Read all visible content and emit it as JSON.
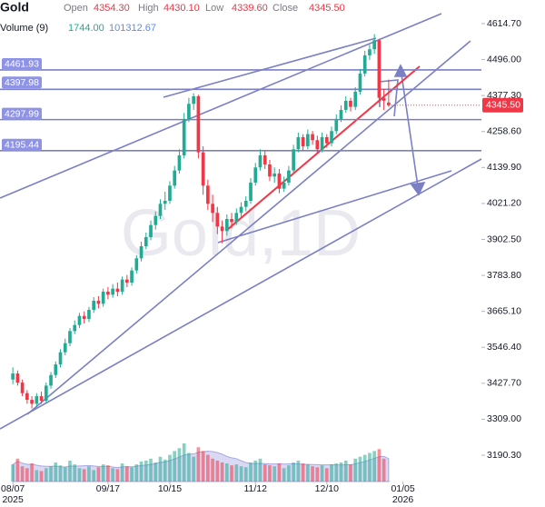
{
  "header": {
    "title": "Gold",
    "fields": [
      {
        "label": "Open",
        "value": "4354.30"
      },
      {
        "label": "High",
        "value": "4430.10"
      },
      {
        "label": "Low",
        "value": "4339.60"
      },
      {
        "label": "Close",
        "value": "4345.50"
      }
    ],
    "volume_label": "Volume (9)",
    "volume_values": [
      "1744.00",
      "101312.67"
    ]
  },
  "chart_data": {
    "type": "candlestick",
    "watermark": "Gold,1D",
    "open": [
      3440,
      3460,
      3430,
      3395,
      3373,
      3360,
      3385,
      3370,
      3420,
      3455,
      3490,
      3530,
      3560,
      3600,
      3620,
      3650,
      3640,
      3670,
      3700,
      3690,
      3730,
      3720,
      3740,
      3730,
      3770,
      3760,
      3800,
      3840,
      3880,
      3910,
      3950,
      3980,
      4020,
      4030,
      4080,
      4130,
      4180,
      4300,
      4350,
      4375,
      4190,
      4080,
      4020,
      3990,
      3945,
      3930,
      3970,
      3960,
      3990,
      4010,
      4030,
      4090,
      4140,
      4180,
      4150,
      4110,
      4120,
      4070,
      4090,
      4130,
      4200,
      4240,
      4210,
      4250,
      4230,
      4200,
      4240,
      4220,
      4260,
      4300,
      4330,
      4360,
      4340,
      4390,
      4450,
      4510,
      4530,
      4560,
      4370,
      4354.3
    ],
    "high": [
      3480,
      3470,
      3440,
      3405,
      3385,
      3395,
      3400,
      3430,
      3465,
      3500,
      3540,
      3575,
      3610,
      3635,
      3660,
      3665,
      3680,
      3712,
      3715,
      3740,
      3745,
      3755,
      3760,
      3780,
      3785,
      3810,
      3850,
      3895,
      3925,
      3965,
      3995,
      4035,
      4060,
      4095,
      4145,
      4200,
      4320,
      4370,
      4385,
      4380,
      4210,
      4100,
      4050,
      4010,
      3965,
      3985,
      3990,
      4005,
      4025,
      4045,
      4105,
      4155,
      4200,
      4195,
      4165,
      4140,
      4135,
      4110,
      4145,
      4215,
      4255,
      4250,
      4265,
      4260,
      4245,
      4255,
      4250,
      4275,
      4315,
      4345,
      4375,
      4370,
      4405,
      4465,
      4525,
      4545,
      4580,
      4565,
      4400,
      4430.1
    ],
    "low": [
      3425,
      3420,
      3385,
      3360,
      3345,
      3350,
      3360,
      3365,
      3410,
      3445,
      3480,
      3520,
      3550,
      3590,
      3610,
      3625,
      3630,
      3660,
      3675,
      3680,
      3705,
      3710,
      3715,
      3720,
      3745,
      3750,
      3790,
      3830,
      3870,
      3900,
      3935,
      3970,
      4000,
      4020,
      4070,
      4120,
      4170,
      4290,
      4330,
      4170,
      4050,
      4000,
      3960,
      3920,
      3890,
      3915,
      3940,
      3950,
      3975,
      3995,
      4020,
      4080,
      4130,
      4135,
      4095,
      4090,
      4055,
      4060,
      4080,
      4120,
      4190,
      4195,
      4200,
      4215,
      4185,
      4190,
      4205,
      4210,
      4250,
      4290,
      4320,
      4325,
      4330,
      4380,
      4440,
      4495,
      4515,
      4355,
      4330,
      4339.6
    ],
    "close": [
      3460,
      3430,
      3395,
      3373,
      3360,
      3385,
      3370,
      3420,
      3455,
      3490,
      3530,
      3560,
      3600,
      3620,
      3650,
      3640,
      3670,
      3700,
      3690,
      3730,
      3720,
      3740,
      3730,
      3770,
      3760,
      3800,
      3840,
      3880,
      3910,
      3950,
      3980,
      4020,
      4030,
      4080,
      4130,
      4180,
      4300,
      4350,
      4375,
      4190,
      4080,
      4020,
      3990,
      3945,
      3930,
      3970,
      3960,
      3990,
      4010,
      4030,
      4090,
      4140,
      4180,
      4150,
      4110,
      4120,
      4070,
      4090,
      4130,
      4200,
      4240,
      4210,
      4250,
      4230,
      4200,
      4240,
      4220,
      4260,
      4300,
      4330,
      4360,
      4340,
      4390,
      4450,
      4510,
      4530,
      4560,
      4370,
      4360,
      4345.5
    ],
    "volume": [
      90000,
      120000,
      80000,
      70000,
      95000,
      60000,
      55000,
      70000,
      80000,
      100000,
      85000,
      75000,
      110000,
      90000,
      70000,
      65000,
      80000,
      60000,
      75000,
      90000,
      85000,
      70000,
      65000,
      95000,
      80000,
      75000,
      90000,
      105000,
      110000,
      120000,
      100000,
      130000,
      115000,
      140000,
      160000,
      175000,
      200000,
      150000,
      130000,
      180000,
      160000,
      140000,
      120000,
      110000,
      100000,
      95000,
      85000,
      90000,
      80000,
      75000,
      100000,
      110000,
      120000,
      90000,
      85000,
      80000,
      95000,
      70000,
      85000,
      100000,
      110000,
      95000,
      90000,
      80000,
      75000,
      85000,
      70000,
      90000,
      95000,
      100000,
      110000,
      90000,
      120000,
      130000,
      140000,
      150000,
      160000,
      170000,
      120000,
      1744
    ],
    "up_color": "#22ab94",
    "down_color": "#f23645",
    "ylim": [
      3190.3,
      4614.7
    ],
    "yticks": [
      {
        "value": 4614.7,
        "label": "4614.70"
      },
      {
        "value": 4496,
        "label": "4496.00"
      },
      {
        "value": 4377.3,
        "label": "4377.30"
      },
      {
        "value": 4258.6,
        "label": "4258.60"
      },
      {
        "value": 4139.9,
        "label": "4139.90"
      },
      {
        "value": 4021.2,
        "label": "4021.20"
      },
      {
        "value": 3902.5,
        "label": "3902.50"
      },
      {
        "value": 3783.8,
        "label": "3783.80"
      },
      {
        "value": 3665.1,
        "label": "3665.10"
      },
      {
        "value": 3546.4,
        "label": "3546.40"
      },
      {
        "value": 3427.7,
        "label": "3427.70"
      },
      {
        "value": 3309,
        "label": "3309.00"
      },
      {
        "value": 3190.3,
        "label": "3190.30"
      }
    ],
    "xlim": [
      -2.7,
      98.5
    ],
    "xticks": [
      {
        "value": 0,
        "label": "08/07"
      },
      {
        "value": 20,
        "label": "09/17"
      },
      {
        "value": 33,
        "label": "10/15"
      },
      {
        "value": 51,
        "label": "11/12"
      },
      {
        "value": 66,
        "label": "12/10"
      },
      {
        "value": 82,
        "label": "01/05"
      }
    ],
    "x_year_labels": [
      {
        "value": 0,
        "label": "2025"
      },
      {
        "value": 82,
        "label": "2026"
      }
    ],
    "last_price": {
      "value": 4345.5,
      "label": "4345.50"
    },
    "levels": [
      {
        "value": 4461.93,
        "label": "4461.93"
      },
      {
        "value": 4397.98,
        "label": "4397.98"
      },
      {
        "value": 4297.99,
        "label": "4297.99"
      },
      {
        "value": 4195.44,
        "label": "4195.44"
      }
    ],
    "level_color": "#7b7fc4"
  }
}
